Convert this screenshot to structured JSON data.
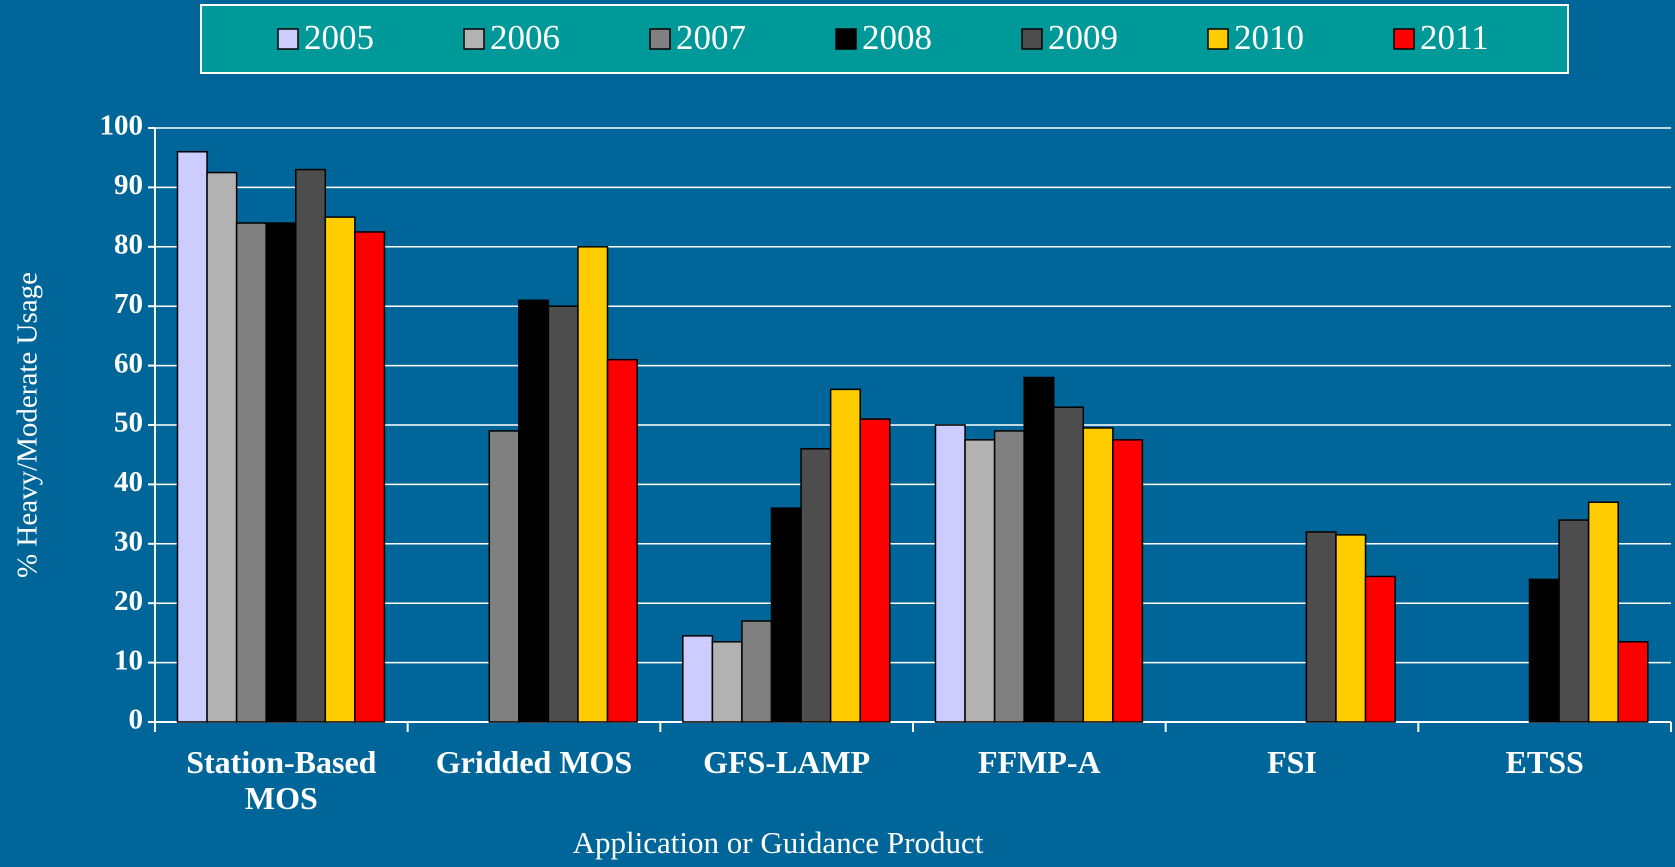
{
  "chart_data": {
    "type": "bar",
    "x_label": "Application or Guidance Product",
    "y_label": "% Heavy/Moderate Usage",
    "categories": [
      "Station-Based MOS",
      "Gridded MOS",
      "GFS-LAMP",
      "FFMP-A",
      "FSI",
      "ETSS"
    ],
    "series": [
      {
        "name": "2005",
        "color": "#ccccff",
        "values": [
          96,
          null,
          14.5,
          50,
          null,
          null
        ]
      },
      {
        "name": "2006",
        "color": "#b2b2b2",
        "values": [
          92.5,
          null,
          13.5,
          47.5,
          null,
          null
        ]
      },
      {
        "name": "2007",
        "color": "#808080",
        "values": [
          84,
          49,
          17,
          49,
          null,
          null
        ]
      },
      {
        "name": "2008",
        "color": "#000000",
        "values": [
          84,
          71,
          36,
          58,
          null,
          24
        ]
      },
      {
        "name": "2009",
        "color": "#4d4d4d",
        "values": [
          93,
          70,
          46,
          53,
          32,
          34
        ]
      },
      {
        "name": "2010",
        "color": "#ffcc00",
        "values": [
          85,
          80,
          56,
          49.5,
          31.5,
          37
        ]
      },
      {
        "name": "2011",
        "color": "#ff0000",
        "values": [
          82.5,
          61,
          51,
          47.5,
          24.5,
          13.5
        ]
      }
    ],
    "ylim": [
      0,
      100
    ],
    "yticks": [
      0,
      10,
      20,
      30,
      40,
      50,
      60,
      70,
      80,
      90,
      100
    ],
    "grid": true,
    "legend": "top"
  }
}
